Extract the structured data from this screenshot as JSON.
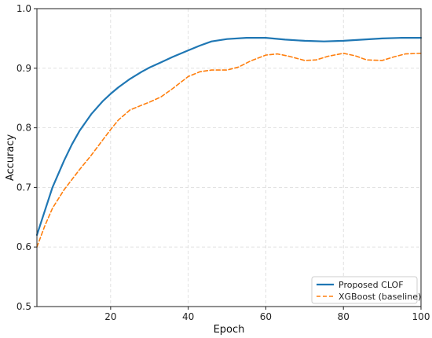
{
  "chart_data": {
    "type": "line",
    "title": "",
    "xlabel": "Epoch",
    "ylabel": "Accuracy",
    "xlim": [
      1,
      100
    ],
    "ylim": [
      0.5,
      1.0
    ],
    "xticks": [
      20,
      40,
      60,
      80,
      100
    ],
    "yticks": [
      0.5,
      0.6,
      0.7,
      0.8,
      0.9,
      1.0
    ],
    "grid": true,
    "legend_position": "bottom-right",
    "series": [
      {
        "name": "Proposed CLOF",
        "color": "#1f77b4",
        "style": "solid",
        "x": [
          1,
          3,
          5,
          8,
          10,
          12,
          15,
          18,
          20,
          22,
          25,
          28,
          30,
          33,
          36,
          40,
          43,
          46,
          50,
          55,
          60,
          65,
          70,
          75,
          80,
          85,
          90,
          95,
          100
        ],
        "y": [
          0.62,
          0.66,
          0.7,
          0.745,
          0.772,
          0.795,
          0.823,
          0.845,
          0.857,
          0.868,
          0.882,
          0.894,
          0.901,
          0.91,
          0.919,
          0.93,
          0.938,
          0.945,
          0.949,
          0.951,
          0.951,
          0.948,
          0.946,
          0.945,
          0.946,
          0.948,
          0.95,
          0.951,
          0.951
        ]
      },
      {
        "name": "XGBoost (baseline)",
        "color": "#ff7f0e",
        "style": "dashed",
        "x": [
          1,
          3,
          5,
          8,
          10,
          12,
          15,
          18,
          20,
          22,
          25,
          28,
          30,
          33,
          36,
          40,
          43,
          46,
          50,
          53,
          56,
          60,
          63,
          66,
          70,
          73,
          76,
          80,
          83,
          86,
          90,
          93,
          96,
          100
        ],
        "y": [
          0.6,
          0.635,
          0.665,
          0.696,
          0.713,
          0.73,
          0.754,
          0.78,
          0.797,
          0.813,
          0.83,
          0.838,
          0.843,
          0.852,
          0.866,
          0.886,
          0.894,
          0.897,
          0.897,
          0.902,
          0.912,
          0.922,
          0.924,
          0.92,
          0.913,
          0.914,
          0.92,
          0.925,
          0.921,
          0.914,
          0.913,
          0.919,
          0.924,
          0.925
        ]
      }
    ]
  }
}
